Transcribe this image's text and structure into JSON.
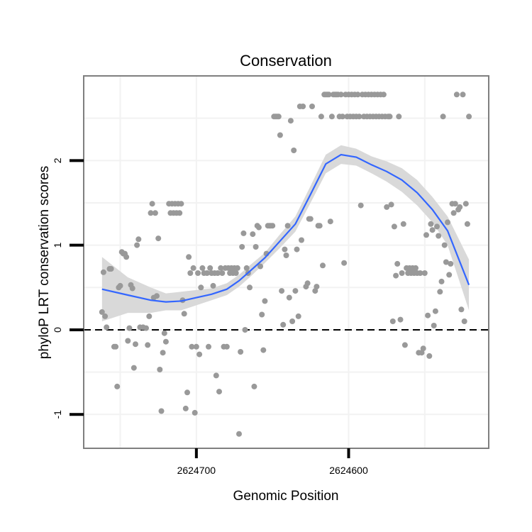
{
  "chart_data": {
    "type": "scatter",
    "title": "Conservation",
    "xlabel": "Genomic Position",
    "ylabel": "phyloP LRT conservation scores",
    "x_reversed": true,
    "xlim": [
      2624774,
      2624508
    ],
    "ylim": [
      -1.4,
      3.0
    ],
    "x_ticks": [
      2624700,
      2624600
    ],
    "x_tick_labels": [
      "2624700",
      "2624600"
    ],
    "y_ticks": [
      -1,
      0,
      1,
      2
    ],
    "y_tick_labels": [
      "-1",
      "0",
      "1",
      "2"
    ],
    "reference_line": {
      "y": 0,
      "style": "dashed"
    },
    "grid": true,
    "points_color": "#999999",
    "smooth_color": "#3366ff",
    "band_color": "#d9d9d9",
    "points": [
      [
        2624762,
        0.21
      ],
      [
        2624761,
        0.68
      ],
      [
        2624760,
        0.16
      ],
      [
        2624759,
        0.03
      ],
      [
        2624757,
        0.72
      ],
      [
        2624756,
        0.72
      ],
      [
        2624754,
        -0.2
      ],
      [
        2624753,
        -0.2
      ],
      [
        2624752,
        -0.67
      ],
      [
        2624751,
        0.5
      ],
      [
        2624750,
        0.52
      ],
      [
        2624749,
        0.92
      ],
      [
        2624748,
        0.9
      ],
      [
        2624747,
        0.9
      ],
      [
        2624746,
        0.86
      ],
      [
        2624745,
        -0.13
      ],
      [
        2624744,
        0.02
      ],
      [
        2624743,
        0.53
      ],
      [
        2624742,
        0.49
      ],
      [
        2624741,
        -0.45
      ],
      [
        2624740,
        -0.17
      ],
      [
        2624739,
        1.0
      ],
      [
        2624738,
        1.07
      ],
      [
        2624737,
        0.03
      ],
      [
        2624735,
        0.03
      ],
      [
        2624733,
        0.02
      ],
      [
        2624732,
        -0.18
      ],
      [
        2624731,
        0.16
      ],
      [
        2624730,
        1.38
      ],
      [
        2624729,
        1.49
      ],
      [
        2624728,
        0.38
      ],
      [
        2624727,
        1.38
      ],
      [
        2624726,
        0.4
      ],
      [
        2624725,
        1.08
      ],
      [
        2624724,
        -0.47
      ],
      [
        2624723,
        -0.96
      ],
      [
        2624722,
        -0.27
      ],
      [
        2624721,
        -0.04
      ],
      [
        2624720,
        -0.14
      ],
      [
        2624718,
        1.49
      ],
      [
        2624717,
        1.38
      ],
      [
        2624716,
        1.49
      ],
      [
        2624715,
        1.38
      ],
      [
        2624714,
        1.49
      ],
      [
        2624713,
        1.38
      ],
      [
        2624712,
        1.49
      ],
      [
        2624711,
        1.38
      ],
      [
        2624710,
        1.49
      ],
      [
        2624709,
        0.35
      ],
      [
        2624708,
        0.19
      ],
      [
        2624707,
        -0.93
      ],
      [
        2624706,
        -0.74
      ],
      [
        2624705,
        0.86
      ],
      [
        2624704,
        0.67
      ],
      [
        2624703,
        -0.2
      ],
      [
        2624702,
        0.73
      ],
      [
        2624701,
        -0.98
      ],
      [
        2624700,
        -0.2
      ],
      [
        2624699,
        0.67
      ],
      [
        2624698,
        -0.29
      ],
      [
        2624697,
        0.5
      ],
      [
        2624696,
        0.73
      ],
      [
        2624695,
        0.67
      ],
      [
        2624693,
        0.67
      ],
      [
        2624692,
        -0.2
      ],
      [
        2624691,
        0.73
      ],
      [
        2624690,
        0.67
      ],
      [
        2624689,
        0.52
      ],
      [
        2624688,
        0.67
      ],
      [
        2624687,
        -0.54
      ],
      [
        2624686,
        0.67
      ],
      [
        2624685,
        -0.73
      ],
      [
        2624684,
        0.73
      ],
      [
        2624683,
        0.67
      ],
      [
        2624682,
        -0.2
      ],
      [
        2624681,
        0.73
      ],
      [
        2624680,
        -0.2
      ],
      [
        2624679,
        0.73
      ],
      [
        2624678,
        0.67
      ],
      [
        2624677,
        0.73
      ],
      [
        2624676,
        0.67
      ],
      [
        2624675,
        0.73
      ],
      [
        2624674,
        0.67
      ],
      [
        2624673,
        0.73
      ],
      [
        2624672,
        -1.23
      ],
      [
        2624671,
        -0.26
      ],
      [
        2624670,
        0.98
      ],
      [
        2624669,
        1.14
      ],
      [
        2624668,
        0.0
      ],
      [
        2624667,
        0.73
      ],
      [
        2624666,
        0.67
      ],
      [
        2624665,
        0.5
      ],
      [
        2624663,
        1.13
      ],
      [
        2624662,
        -0.67
      ],
      [
        2624661,
        0.98
      ],
      [
        2624660,
        1.23
      ],
      [
        2624659,
        1.21
      ],
      [
        2624658,
        0.75
      ],
      [
        2624657,
        0.18
      ],
      [
        2624656,
        -0.24
      ],
      [
        2624655,
        0.34
      ],
      [
        2624654,
        0.9
      ],
      [
        2624653,
        1.23
      ],
      [
        2624652,
        1.23
      ],
      [
        2624651,
        1.23
      ],
      [
        2624650,
        1.23
      ],
      [
        2624649,
        2.52
      ],
      [
        2624648,
        2.52
      ],
      [
        2624647,
        2.52
      ],
      [
        2624646,
        2.52
      ],
      [
        2624645,
        2.3
      ],
      [
        2624644,
        0.46
      ],
      [
        2624643,
        0.06
      ],
      [
        2624642,
        0.95
      ],
      [
        2624641,
        0.88
      ],
      [
        2624640,
        1.23
      ],
      [
        2624639,
        0.38
      ],
      [
        2624638,
        2.47
      ],
      [
        2624637,
        0.1
      ],
      [
        2624636,
        2.12
      ],
      [
        2624635,
        0.46
      ],
      [
        2624634,
        0.95
      ],
      [
        2624633,
        0.16
      ],
      [
        2624632,
        2.64
      ],
      [
        2624631,
        1.06
      ],
      [
        2624630,
        2.64
      ],
      [
        2624628,
        0.51
      ],
      [
        2624627,
        0.55
      ],
      [
        2624626,
        1.31
      ],
      [
        2624625,
        1.31
      ],
      [
        2624624,
        2.64
      ],
      [
        2624622,
        0.46
      ],
      [
        2624621,
        0.51
      ],
      [
        2624620,
        1.23
      ],
      [
        2624619,
        1.23
      ],
      [
        2624618,
        2.52
      ],
      [
        2624617,
        0.76
      ],
      [
        2624616,
        2.78
      ],
      [
        2624615,
        2.78
      ],
      [
        2624614,
        2.78
      ],
      [
        2624613,
        2.78
      ],
      [
        2624612,
        1.28
      ],
      [
        2624611,
        2.52
      ],
      [
        2624610,
        2.78
      ],
      [
        2624609,
        2.78
      ],
      [
        2624608,
        2.78
      ],
      [
        2624607,
        2.78
      ],
      [
        2624606,
        2.52
      ],
      [
        2624605,
        2.78
      ],
      [
        2624604,
        2.52
      ],
      [
        2624603,
        0.79
      ],
      [
        2624602,
        2.78
      ],
      [
        2624601,
        2.52
      ],
      [
        2624600,
        2.78
      ],
      [
        2624599,
        2.52
      ],
      [
        2624598,
        2.78
      ],
      [
        2624597,
        2.52
      ],
      [
        2624596,
        2.78
      ],
      [
        2624595,
        2.52
      ],
      [
        2624594,
        2.78
      ],
      [
        2624593,
        2.52
      ],
      [
        2624592,
        1.47
      ],
      [
        2624591,
        2.78
      ],
      [
        2624590,
        2.52
      ],
      [
        2624589,
        2.78
      ],
      [
        2624588,
        2.52
      ],
      [
        2624587,
        2.78
      ],
      [
        2624586,
        2.52
      ],
      [
        2624585,
        2.78
      ],
      [
        2624584,
        2.52
      ],
      [
        2624583,
        2.78
      ],
      [
        2624582,
        2.52
      ],
      [
        2624581,
        2.78
      ],
      [
        2624580,
        2.52
      ],
      [
        2624579,
        2.78
      ],
      [
        2624578,
        2.52
      ],
      [
        2624577,
        2.78
      ],
      [
        2624576,
        2.52
      ],
      [
        2624575,
        1.45
      ],
      [
        2624574,
        2.52
      ],
      [
        2624573,
        2.52
      ],
      [
        2624572,
        1.48
      ],
      [
        2624571,
        0.1
      ],
      [
        2624570,
        1.22
      ],
      [
        2624569,
        0.64
      ],
      [
        2624568,
        0.78
      ],
      [
        2624567,
        2.52
      ],
      [
        2624566,
        0.12
      ],
      [
        2624565,
        0.67
      ],
      [
        2624564,
        1.25
      ],
      [
        2624563,
        -0.18
      ],
      [
        2624562,
        0.73
      ],
      [
        2624561,
        0.67
      ],
      [
        2624560,
        0.73
      ],
      [
        2624559,
        0.67
      ],
      [
        2624558,
        0.73
      ],
      [
        2624557,
        0.67
      ],
      [
        2624556,
        0.73
      ],
      [
        2624555,
        0.67
      ],
      [
        2624554,
        -0.27
      ],
      [
        2624553,
        0.67
      ],
      [
        2624552,
        -0.27
      ],
      [
        2624551,
        -0.22
      ],
      [
        2624550,
        0.67
      ],
      [
        2624549,
        1.12
      ],
      [
        2624548,
        0.17
      ],
      [
        2624547,
        -0.31
      ],
      [
        2624546,
        1.25
      ],
      [
        2624545,
        1.18
      ],
      [
        2624544,
        0.05
      ],
      [
        2624543,
        0.22
      ],
      [
        2624542,
        1.22
      ],
      [
        2624541,
        1.11
      ],
      [
        2624540,
        0.45
      ],
      [
        2624539,
        0.57
      ],
      [
        2624538,
        2.52
      ],
      [
        2624537,
        1.0
      ],
      [
        2624536,
        0.8
      ],
      [
        2624535,
        1.27
      ],
      [
        2624534,
        0.65
      ],
      [
        2624533,
        0.78
      ],
      [
        2624532,
        1.49
      ],
      [
        2624531,
        1.38
      ],
      [
        2624530,
        1.49
      ],
      [
        2624529,
        2.78
      ],
      [
        2624528,
        1.42
      ],
      [
        2624527,
        1.45
      ],
      [
        2624526,
        0.24
      ],
      [
        2624525,
        2.78
      ],
      [
        2624524,
        0.1
      ],
      [
        2624523,
        1.49
      ],
      [
        2624522,
        1.25
      ],
      [
        2624521,
        2.52
      ]
    ],
    "smooth_x": [
      2624762,
      2624745,
      2624730,
      2624720,
      2624710,
      2624700,
      2624690,
      2624680,
      2624672,
      2624665,
      2624655,
      2624645,
      2624635,
      2624625,
      2624615,
      2624605,
      2624595,
      2624585,
      2624575,
      2624565,
      2624555,
      2624545,
      2624535,
      2624521
    ],
    "smooth_y": [
      0.48,
      0.41,
      0.35,
      0.33,
      0.34,
      0.38,
      0.42,
      0.48,
      0.58,
      0.69,
      0.85,
      1.05,
      1.25,
      1.6,
      1.96,
      2.07,
      2.04,
      1.95,
      1.87,
      1.77,
      1.62,
      1.42,
      1.17,
      0.53
    ],
    "band_lower": [
      0.1,
      0.2,
      0.2,
      0.23,
      0.23,
      0.29,
      0.35,
      0.41,
      0.51,
      0.62,
      0.79,
      0.97,
      1.16,
      1.5,
      1.85,
      1.96,
      1.94,
      1.85,
      1.75,
      1.63,
      1.47,
      1.27,
      1.0,
      0.23
    ],
    "band_upper": [
      0.86,
      0.62,
      0.5,
      0.43,
      0.45,
      0.47,
      0.49,
      0.55,
      0.65,
      0.76,
      0.91,
      1.13,
      1.34,
      1.7,
      2.07,
      2.18,
      2.14,
      2.05,
      1.99,
      1.91,
      1.77,
      1.57,
      1.34,
      0.83
    ]
  }
}
